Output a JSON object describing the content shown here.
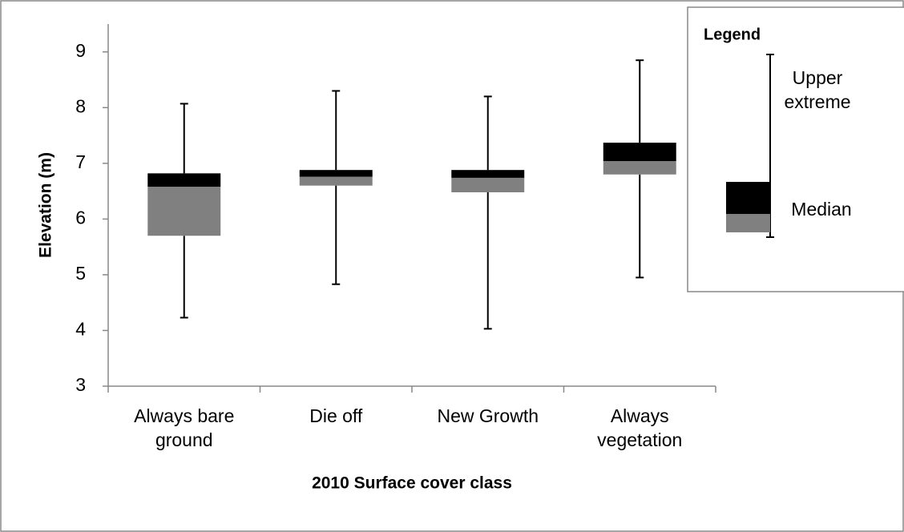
{
  "chart_data": {
    "type": "box",
    "y_label": "Elevation (m)",
    "x_label": "2010 Surface cover class",
    "categories": [
      "Always bare ground",
      "Die off",
      "New Growth",
      "Always vegetation"
    ],
    "min": [
      4.23,
      4.83,
      4.03,
      4.95
    ],
    "q1": [
      5.7,
      6.6,
      6.48,
      6.8
    ],
    "median": [
      6.58,
      6.76,
      6.74,
      7.04
    ],
    "q3": [
      6.82,
      6.88,
      6.88,
      7.37
    ],
    "max": [
      8.07,
      8.3,
      8.2,
      8.85
    ],
    "lower_color": "#808080",
    "upper_color": "#000000",
    "ylim": [
      3,
      9.5
    ],
    "yticks": [
      3,
      4,
      5,
      6,
      7,
      8,
      9
    ],
    "legend": {
      "title": "Legend",
      "labels": [
        "Upper extreme",
        "Median"
      ]
    }
  }
}
